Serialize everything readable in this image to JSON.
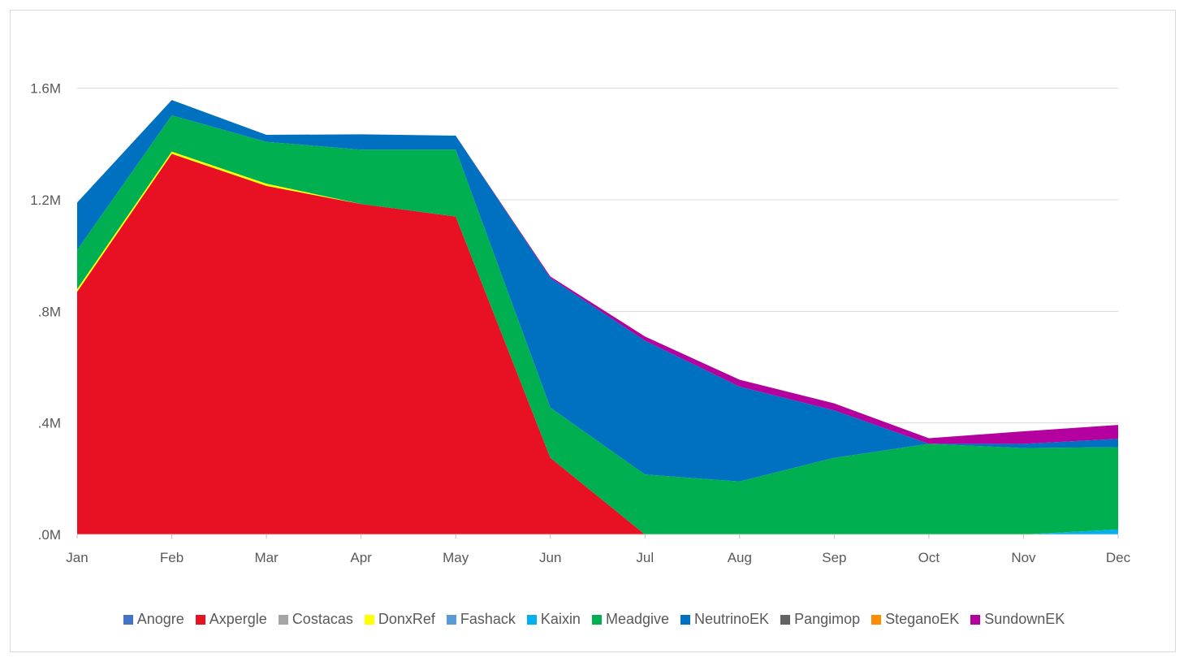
{
  "chart_data": {
    "type": "area",
    "stacked": true,
    "categories": [
      "Jan",
      "Feb",
      "Mar",
      "Apr",
      "May",
      "Jun",
      "Jul",
      "Aug",
      "Sep",
      "Oct",
      "Nov",
      "Dec"
    ],
    "y_ticks": [
      ".0M",
      ".4M",
      ".8M",
      "1.2M",
      "1.6M"
    ],
    "y_tick_values": [
      0,
      400000,
      800000,
      1200000,
      1600000
    ],
    "ylim": [
      0,
      1800000
    ],
    "grid": true,
    "legend_position": "bottom",
    "series": [
      {
        "name": "Anogre",
        "color": "#4472c4",
        "values": [
          0,
          0,
          0,
          0,
          0,
          0,
          0,
          0,
          0,
          0,
          0,
          0
        ]
      },
      {
        "name": "Axpergle",
        "color": "#e81123",
        "values": [
          870000,
          1365000,
          1250000,
          1185000,
          1140000,
          275000,
          0,
          0,
          0,
          0,
          0,
          0
        ]
      },
      {
        "name": "Costacas",
        "color": "#a5a5a5",
        "values": [
          0,
          0,
          0,
          0,
          0,
          0,
          0,
          0,
          0,
          0,
          0,
          0
        ]
      },
      {
        "name": "DonxRef",
        "color": "#ffff00",
        "values": [
          10000,
          8000,
          8000,
          0,
          0,
          0,
          0,
          0,
          0,
          0,
          0,
          0
        ]
      },
      {
        "name": "Fashack",
        "color": "#5b9bd5",
        "values": [
          0,
          0,
          0,
          0,
          0,
          0,
          0,
          0,
          0,
          0,
          0,
          0
        ]
      },
      {
        "name": "Kaixin",
        "color": "#00b0f0",
        "values": [
          0,
          0,
          0,
          0,
          0,
          0,
          0,
          0,
          0,
          0,
          0,
          18000
        ]
      },
      {
        "name": "Meadgive",
        "color": "#00b050",
        "values": [
          140000,
          130000,
          150000,
          195000,
          240000,
          180000,
          215000,
          190000,
          275000,
          325000,
          310000,
          295000
        ]
      },
      {
        "name": "NeutrinoEK",
        "color": "#0070c0",
        "values": [
          170000,
          55000,
          25000,
          55000,
          50000,
          465000,
          480000,
          340000,
          170000,
          0,
          15000,
          30000
        ]
      },
      {
        "name": "Pangimop",
        "color": "#636363",
        "values": [
          0,
          0,
          0,
          0,
          0,
          0,
          0,
          0,
          0,
          0,
          0,
          0
        ]
      },
      {
        "name": "SteganoEK",
        "color": "#ff8c00",
        "values": [
          0,
          0,
          0,
          0,
          0,
          0,
          0,
          0,
          0,
          0,
          0,
          0
        ]
      },
      {
        "name": "SundownEK",
        "color": "#b4009e",
        "values": [
          0,
          0,
          0,
          0,
          0,
          5000,
          15000,
          25000,
          25000,
          20000,
          45000,
          50000
        ]
      }
    ]
  }
}
